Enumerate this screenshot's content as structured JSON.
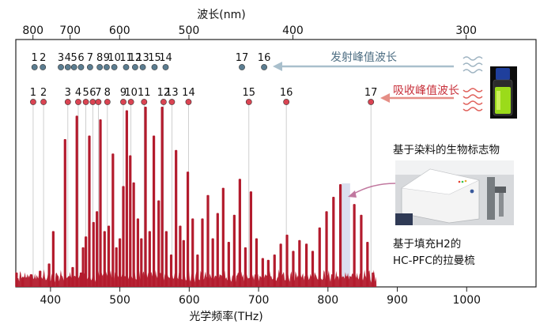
{
  "chart_data": {
    "type": "bar",
    "xlabel": "光学频率(THz)",
    "top_axis_label": "波长(nm)",
    "xlim": [
      350,
      1100
    ],
    "xticks": [
      400,
      500,
      600,
      700,
      800,
      900,
      1000
    ],
    "top_ticks": [
      {
        "label": "800",
        "wavelength_nm": 800
      },
      {
        "label": "700",
        "wavelength_nm": 700
      },
      {
        "label": "600",
        "wavelength_nm": 600
      },
      {
        "label": "500",
        "wavelength_nm": 500
      },
      {
        "label": "400",
        "wavelength_nm": 400
      },
      {
        "label": "300",
        "wavelength_nm": 300
      }
    ],
    "y_axis_ticks": false,
    "grid": false,
    "spectrum_color": "#b31b2d",
    "spectrum_range_thz": [
      350,
      870
    ],
    "spectrum_lines": [
      {
        "x": 351,
        "y": 0.08
      },
      {
        "x": 360,
        "y": 0.05
      },
      {
        "x": 372,
        "y": 0.07
      },
      {
        "x": 385,
        "y": 0.09
      },
      {
        "x": 398,
        "y": 0.13
      },
      {
        "x": 404,
        "y": 0.31
      },
      {
        "x": 410,
        "y": 0.06
      },
      {
        "x": 421,
        "y": 0.82
      },
      {
        "x": 427,
        "y": 0.06
      },
      {
        "x": 432,
        "y": 0.11
      },
      {
        "x": 438,
        "y": 0.95
      },
      {
        "x": 444,
        "y": 0.08
      },
      {
        "x": 447,
        "y": 0.22
      },
      {
        "x": 451,
        "y": 0.28
      },
      {
        "x": 456,
        "y": 0.84
      },
      {
        "x": 462,
        "y": 0.36
      },
      {
        "x": 467,
        "y": 0.42
      },
      {
        "x": 472,
        "y": 0.93
      },
      {
        "x": 478,
        "y": 0.31
      },
      {
        "x": 484,
        "y": 0.34
      },
      {
        "x": 490,
        "y": 0.74
      },
      {
        "x": 495,
        "y": 0.22
      },
      {
        "x": 500,
        "y": 0.27
      },
      {
        "x": 505,
        "y": 0.56
      },
      {
        "x": 510,
        "y": 0.98
      },
      {
        "x": 515,
        "y": 0.73
      },
      {
        "x": 520,
        "y": 0.58
      },
      {
        "x": 526,
        "y": 0.38
      },
      {
        "x": 531,
        "y": 0.27
      },
      {
        "x": 537,
        "y": 1.0
      },
      {
        "x": 543,
        "y": 0.31
      },
      {
        "x": 549,
        "y": 0.84
      },
      {
        "x": 556,
        "y": 0.48
      },
      {
        "x": 561,
        "y": 1.0
      },
      {
        "x": 567,
        "y": 0.31
      },
      {
        "x": 574,
        "y": 0.18
      },
      {
        "x": 581,
        "y": 0.76
      },
      {
        "x": 587,
        "y": 0.34
      },
      {
        "x": 592,
        "y": 0.26
      },
      {
        "x": 598,
        "y": 0.64
      },
      {
        "x": 605,
        "y": 0.38
      },
      {
        "x": 612,
        "y": 0.18
      },
      {
        "x": 619,
        "y": 0.38
      },
      {
        "x": 627,
        "y": 0.51
      },
      {
        "x": 634,
        "y": 0.27
      },
      {
        "x": 641,
        "y": 0.41
      },
      {
        "x": 649,
        "y": 0.55
      },
      {
        "x": 657,
        "y": 0.25
      },
      {
        "x": 665,
        "y": 0.4
      },
      {
        "x": 673,
        "y": 0.6
      },
      {
        "x": 681,
        "y": 0.22
      },
      {
        "x": 689,
        "y": 0.53
      },
      {
        "x": 697,
        "y": 0.27
      },
      {
        "x": 706,
        "y": 0.16
      },
      {
        "x": 714,
        "y": 0.15
      },
      {
        "x": 723,
        "y": 0.18
      },
      {
        "x": 732,
        "y": 0.24
      },
      {
        "x": 741,
        "y": 0.29
      },
      {
        "x": 750,
        "y": 0.2
      },
      {
        "x": 759,
        "y": 0.26
      },
      {
        "x": 769,
        "y": 0.24
      },
      {
        "x": 778,
        "y": 0.2
      },
      {
        "x": 788,
        "y": 0.33
      },
      {
        "x": 798,
        "y": 0.42
      },
      {
        "x": 808,
        "y": 0.5
      },
      {
        "x": 818,
        "y": 0.57
      },
      {
        "x": 828,
        "y": 0.06
      },
      {
        "x": 838,
        "y": 0.46
      },
      {
        "x": 848,
        "y": 0.4
      },
      {
        "x": 857,
        "y": 0.25
      },
      {
        "x": 865,
        "y": 0.08
      }
    ],
    "highlight_band_thz": [
      820,
      832
    ],
    "series": [
      {
        "name": "发射峰值波长",
        "color": "#5b7d91",
        "markers": [
          {
            "label": "1",
            "x": 377
          },
          {
            "label": "2",
            "x": 389
          },
          {
            "label": "3",
            "x": 415
          },
          {
            "label": "4",
            "x": 425
          },
          {
            "label": "5",
            "x": 434
          },
          {
            "label": "6",
            "x": 444
          },
          {
            "label": "7",
            "x": 457
          },
          {
            "label": "8",
            "x": 471
          },
          {
            "label": "9",
            "x": 481
          },
          {
            "label": "10",
            "x": 492
          },
          {
            "label": "11",
            "x": 509
          },
          {
            "label": "12",
            "x": 522
          },
          {
            "label": "13",
            "x": 533
          },
          {
            "label": "15",
            "x": 550
          },
          {
            "label": "14",
            "x": 566
          },
          {
            "label": "17",
            "x": 676
          },
          {
            "label": "16",
            "x": 708
          }
        ]
      },
      {
        "name": "吸收峰值波长",
        "color": "#d94452",
        "markers": [
          {
            "label": "1",
            "x": 375
          },
          {
            "label": "2",
            "x": 390
          },
          {
            "label": "3",
            "x": 425
          },
          {
            "label": "4",
            "x": 440
          },
          {
            "label": "5",
            "x": 451
          },
          {
            "label": "6",
            "x": 461
          },
          {
            "label": "7",
            "x": 469
          },
          {
            "label": "8",
            "x": 482
          },
          {
            "label": "9",
            "x": 505
          },
          {
            "label": "10",
            "x": 516
          },
          {
            "label": "11",
            "x": 535
          },
          {
            "label": "12",
            "x": 563
          },
          {
            "label": "13",
            "x": 575
          },
          {
            "label": "14",
            "x": 599
          },
          {
            "label": "15",
            "x": 686
          },
          {
            "label": "16",
            "x": 740
          },
          {
            "label": "17",
            "x": 862
          }
        ]
      }
    ],
    "annotations": [
      {
        "id": "emission",
        "text": "发射峰值波长"
      },
      {
        "id": "absorption",
        "text": "吸收峰值波长"
      },
      {
        "id": "biomarker",
        "text": "基于染料的生物标志物"
      },
      {
        "id": "comb_line1",
        "text": "基于填充H2的"
      },
      {
        "id": "comb_line2",
        "text": "HC-PFC的拉曼梳"
      }
    ]
  },
  "icons": {
    "vial": "dye-vial-icon",
    "laser": "laser-instrument-icon"
  }
}
